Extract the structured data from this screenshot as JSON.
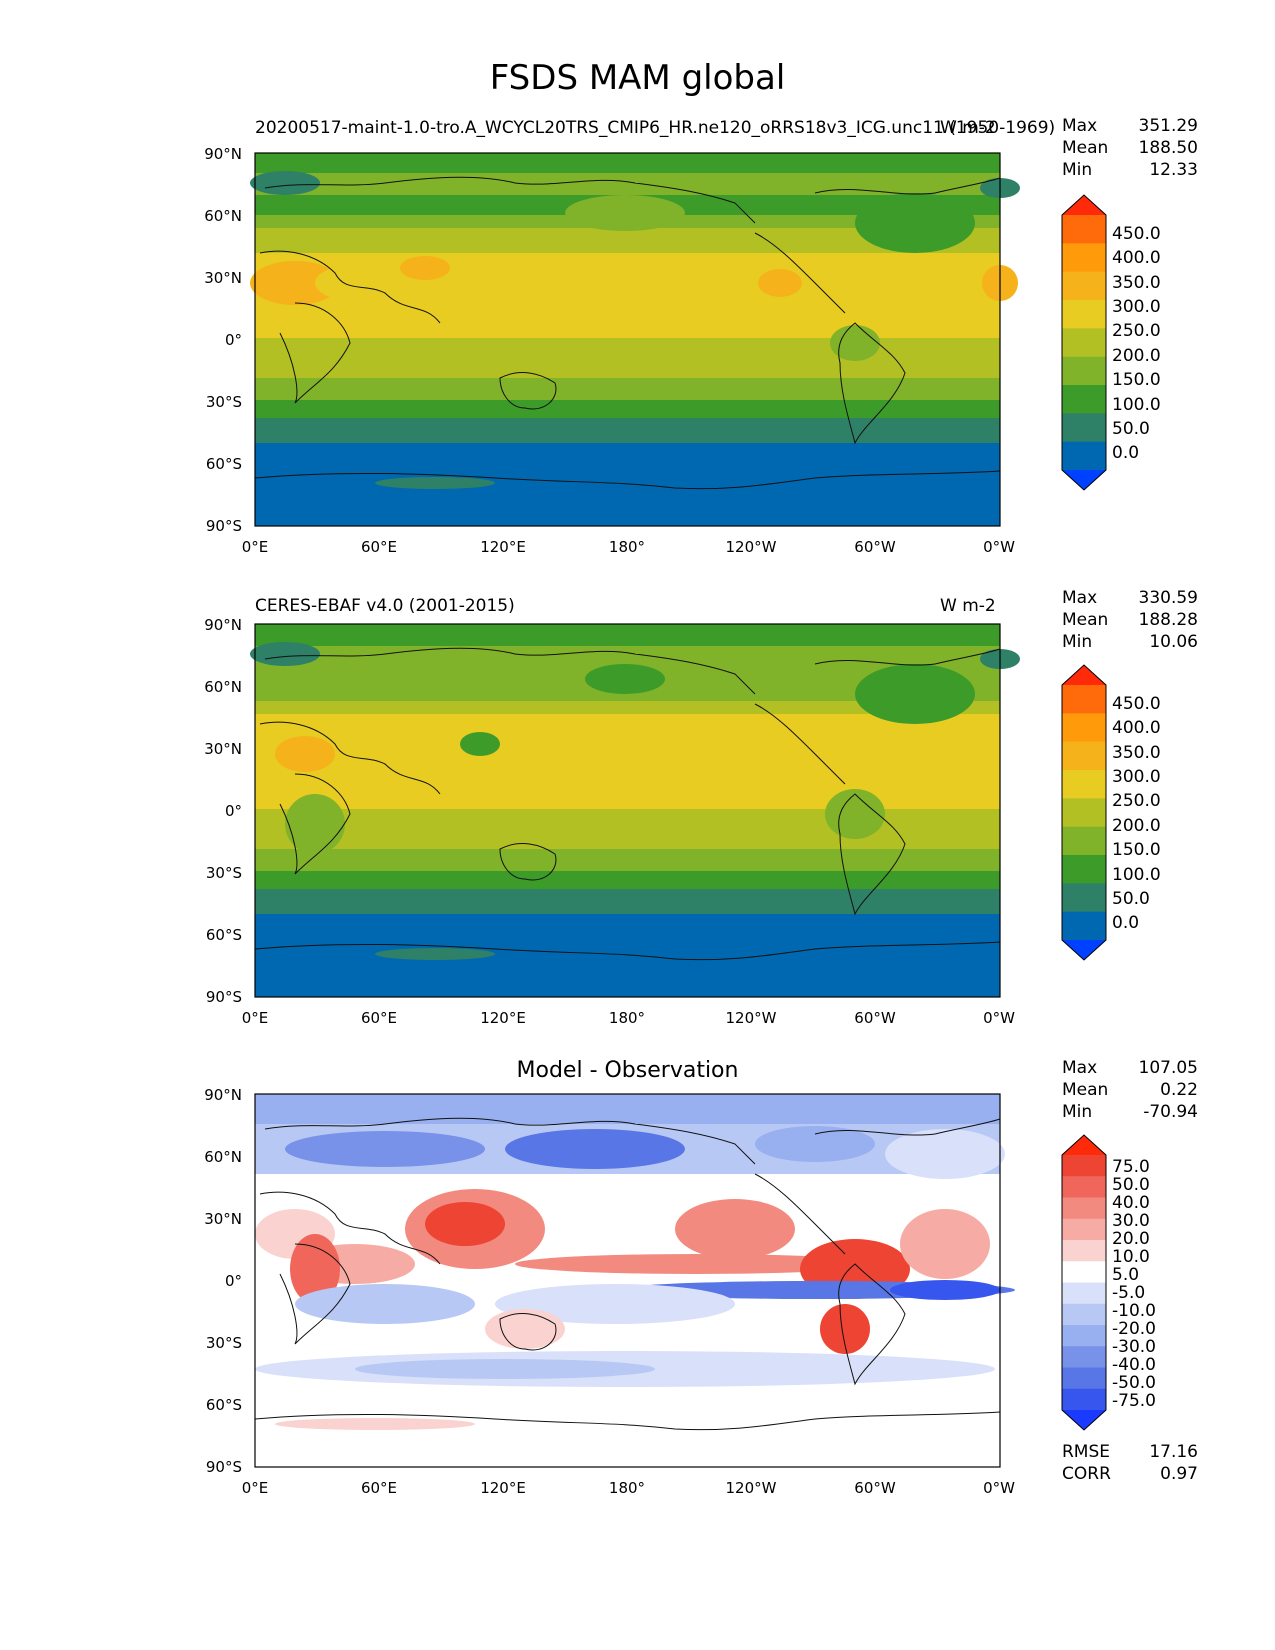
{
  "title": "FSDS MAM global",
  "panels": [
    {
      "left_title": "20200517-maint-1.0-tro.A_WCYCL20TRS_CMIP6_HR.ne120_oRRS18v3_ICG.unc11 (1950-1969)",
      "right_title": "W m-2",
      "center_title": "",
      "stats": {
        "max": "351.29",
        "mean": "188.50",
        "min": "12.33"
      },
      "colorbar": [
        "450.0",
        "400.0",
        "350.0",
        "300.0",
        "250.0",
        "200.0",
        "150.0",
        "100.0",
        "50.0",
        "0.0"
      ]
    },
    {
      "left_title": "CERES-EBAF v4.0 (2001-2015)",
      "right_title": "W m-2",
      "center_title": "",
      "stats": {
        "max": "330.59",
        "mean": "188.28",
        "min": "10.06"
      },
      "colorbar": [
        "450.0",
        "400.0",
        "350.0",
        "300.0",
        "250.0",
        "200.0",
        "150.0",
        "100.0",
        "50.0",
        "0.0"
      ]
    },
    {
      "left_title": "",
      "right_title": "",
      "center_title": "Model - Observation",
      "stats": {
        "max": "107.05",
        "mean": "0.22",
        "min": "-70.94"
      },
      "colorbar": [
        "75.0",
        "50.0",
        "40.0",
        "30.0",
        "20.0",
        "10.0",
        "5.0",
        "-5.0",
        "-10.0",
        "-20.0",
        "-30.0",
        "-40.0",
        "-50.0",
        "-75.0"
      ],
      "rmse": "17.16",
      "corr": "0.97"
    }
  ],
  "stat_labels": {
    "max": "Max",
    "mean": "Mean",
    "min": "Min",
    "rmse": "RMSE",
    "corr": "CORR"
  },
  "lat_ticks": [
    "90°N",
    "60°N",
    "30°N",
    "0°",
    "30°S",
    "60°S",
    "90°S"
  ],
  "lon_ticks": [
    "0°E",
    "60°E",
    "120°E",
    "180°",
    "120°W",
    "60°W",
    "0°W"
  ],
  "colors": {
    "abs_scale": [
      "#ff2a0a",
      "#ff6a0a",
      "#ff9a0a",
      "#f5b21a",
      "#e8cc22",
      "#b2c024",
      "#80b22a",
      "#3d9b2a",
      "#2e8067",
      "#0068b0",
      "#0040ff"
    ],
    "diff_scale": [
      "#ff2a0a",
      "#ee4433",
      "#f0665a",
      "#f38a80",
      "#f6aca5",
      "#fad2cf",
      "#ffffff",
      "#d8e0fa",
      "#b8c8f5",
      "#98aff0",
      "#7892ea",
      "#5876e6",
      "#3656ee",
      "#1a3aff"
    ]
  }
}
